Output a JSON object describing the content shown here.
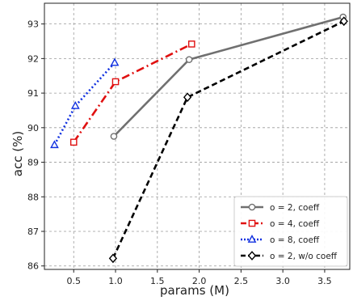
{
  "chart_data": {
    "type": "line",
    "xlabel": "params (M)",
    "ylabel": "acc (%)",
    "xlim": [
      0.15,
      3.8
    ],
    "ylim": [
      85.9,
      93.6
    ],
    "x_ticks": [
      "0.5",
      "1.0",
      "1.5",
      "2.0",
      "2.5",
      "3.0",
      "3.5"
    ],
    "y_ticks": [
      "86",
      "87",
      "88",
      "89",
      "90",
      "91",
      "92",
      "93"
    ],
    "grid": "dashed",
    "legend_position": "lower-right",
    "series": [
      {
        "name": "o = 2, coeff",
        "color": "#707070",
        "line_style": "solid",
        "marker": "circle",
        "x": [
          0.98,
          1.88,
          3.72
        ],
        "y": [
          89.75,
          91.97,
          93.2
        ]
      },
      {
        "name": "o = 4, coeff",
        "color": "#e01010",
        "line_style": "dashdot",
        "marker": "square",
        "x": [
          0.5,
          1.0,
          1.91
        ],
        "y": [
          89.58,
          91.33,
          92.42
        ]
      },
      {
        "name": "o = 8, coeff",
        "color": "#1030e0",
        "line_style": "dotted",
        "marker": "triangle",
        "x": [
          0.27,
          0.52,
          0.99
        ],
        "y": [
          89.5,
          90.63,
          91.88
        ]
      },
      {
        "name": "o = 2, w/o coeff",
        "color": "#000000",
        "line_style": "dashed",
        "marker": "diamond",
        "x": [
          0.97,
          1.86,
          3.73
        ],
        "y": [
          86.22,
          90.88,
          93.08
        ]
      }
    ]
  }
}
